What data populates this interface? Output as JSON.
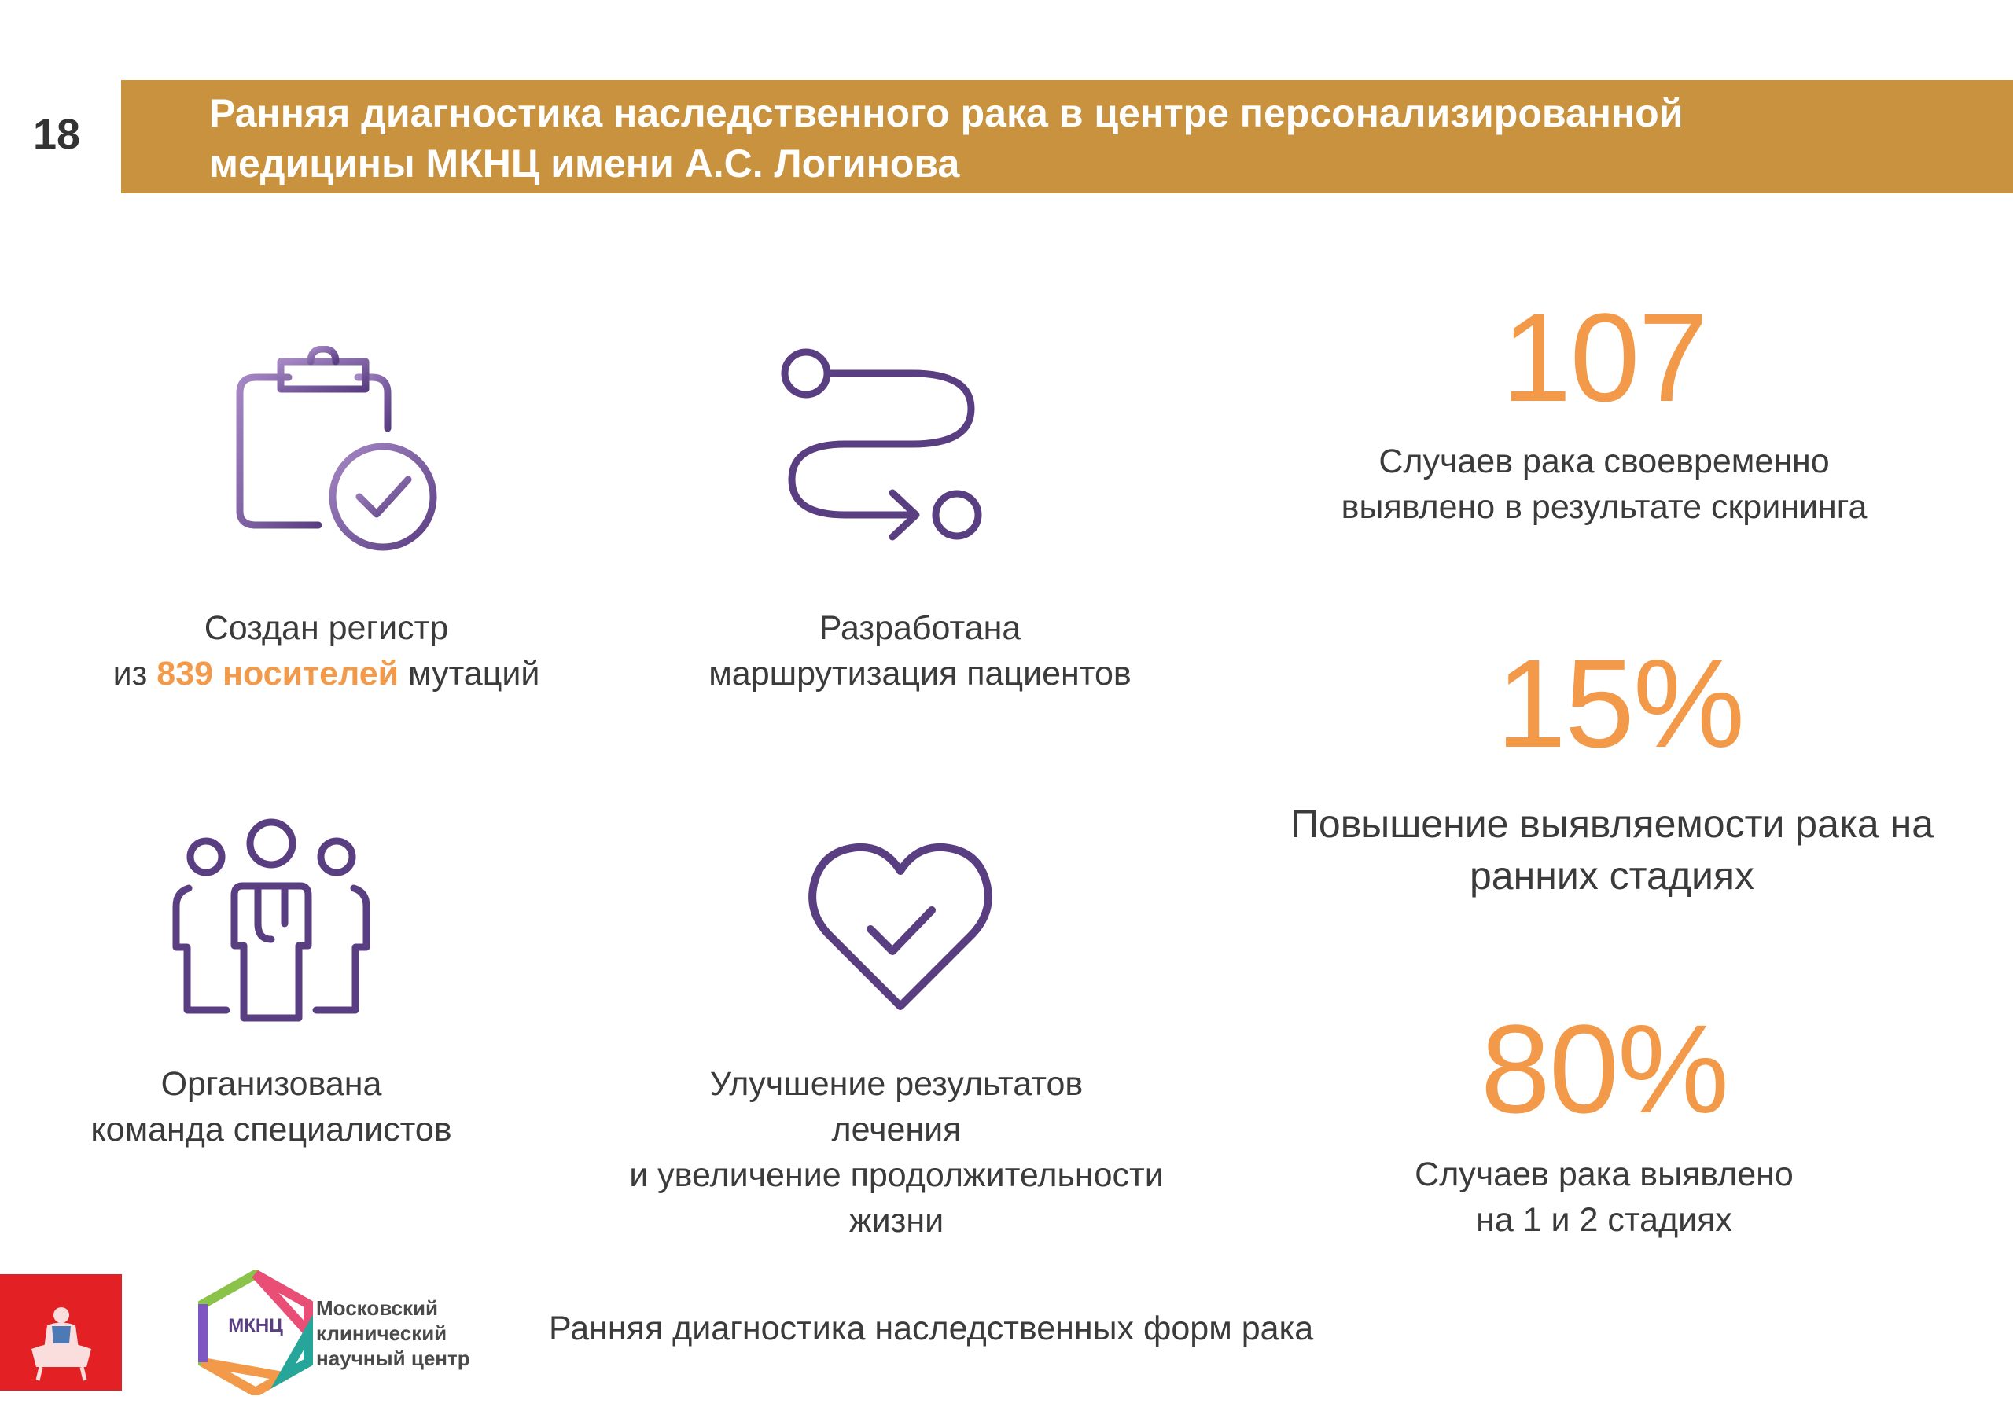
{
  "slide_number": "18",
  "title": {
    "line1": "Ранняя диагностика наследственного рака в центре персонализированной",
    "line2": "медицины МКНЦ имени А.С. Логинова"
  },
  "colors": {
    "accent": "#c8923f",
    "orange": "#f39a4a",
    "purple": "#5a3e82",
    "red": "#e32124"
  },
  "items": [
    {
      "icon": "clipboard-check-icon",
      "line1": "Создан регистр",
      "line2_prefix": "из ",
      "line2_highlight": "839 носителей",
      "line2_suffix": " мутаций"
    },
    {
      "icon": "route-path-icon",
      "line1": "Разработана",
      "line2": "маршрутизация пациентов"
    },
    {
      "icon": "medical-team-icon",
      "line1": "Организована",
      "line2": "команда специалистов"
    },
    {
      "icon": "heart-check-icon",
      "line1": "Улучшение результатов",
      "line2": "лечения",
      "line3": "и увеличение продолжительности",
      "line4": "жизни"
    }
  ],
  "stats": [
    {
      "value": "107",
      "line1": "Случаев рака своевременно",
      "line2": "выявлено в результате скрининга"
    },
    {
      "value": "15%",
      "line1": "Повышение выявляемости рака на",
      "line2": "ранних стадиях"
    },
    {
      "value": "80%",
      "line1": "Случаев рака выявлено",
      "line2": "на 1 и 2 стадиях"
    }
  ],
  "footer": {
    "emblem": "moscow-coat-of-arms-icon",
    "logo_text": "МКНЦ",
    "org_line1": "Московский",
    "org_line2": "клинический",
    "org_line3": "научный центр",
    "text": "Ранняя диагностика наследственных форм рака"
  }
}
